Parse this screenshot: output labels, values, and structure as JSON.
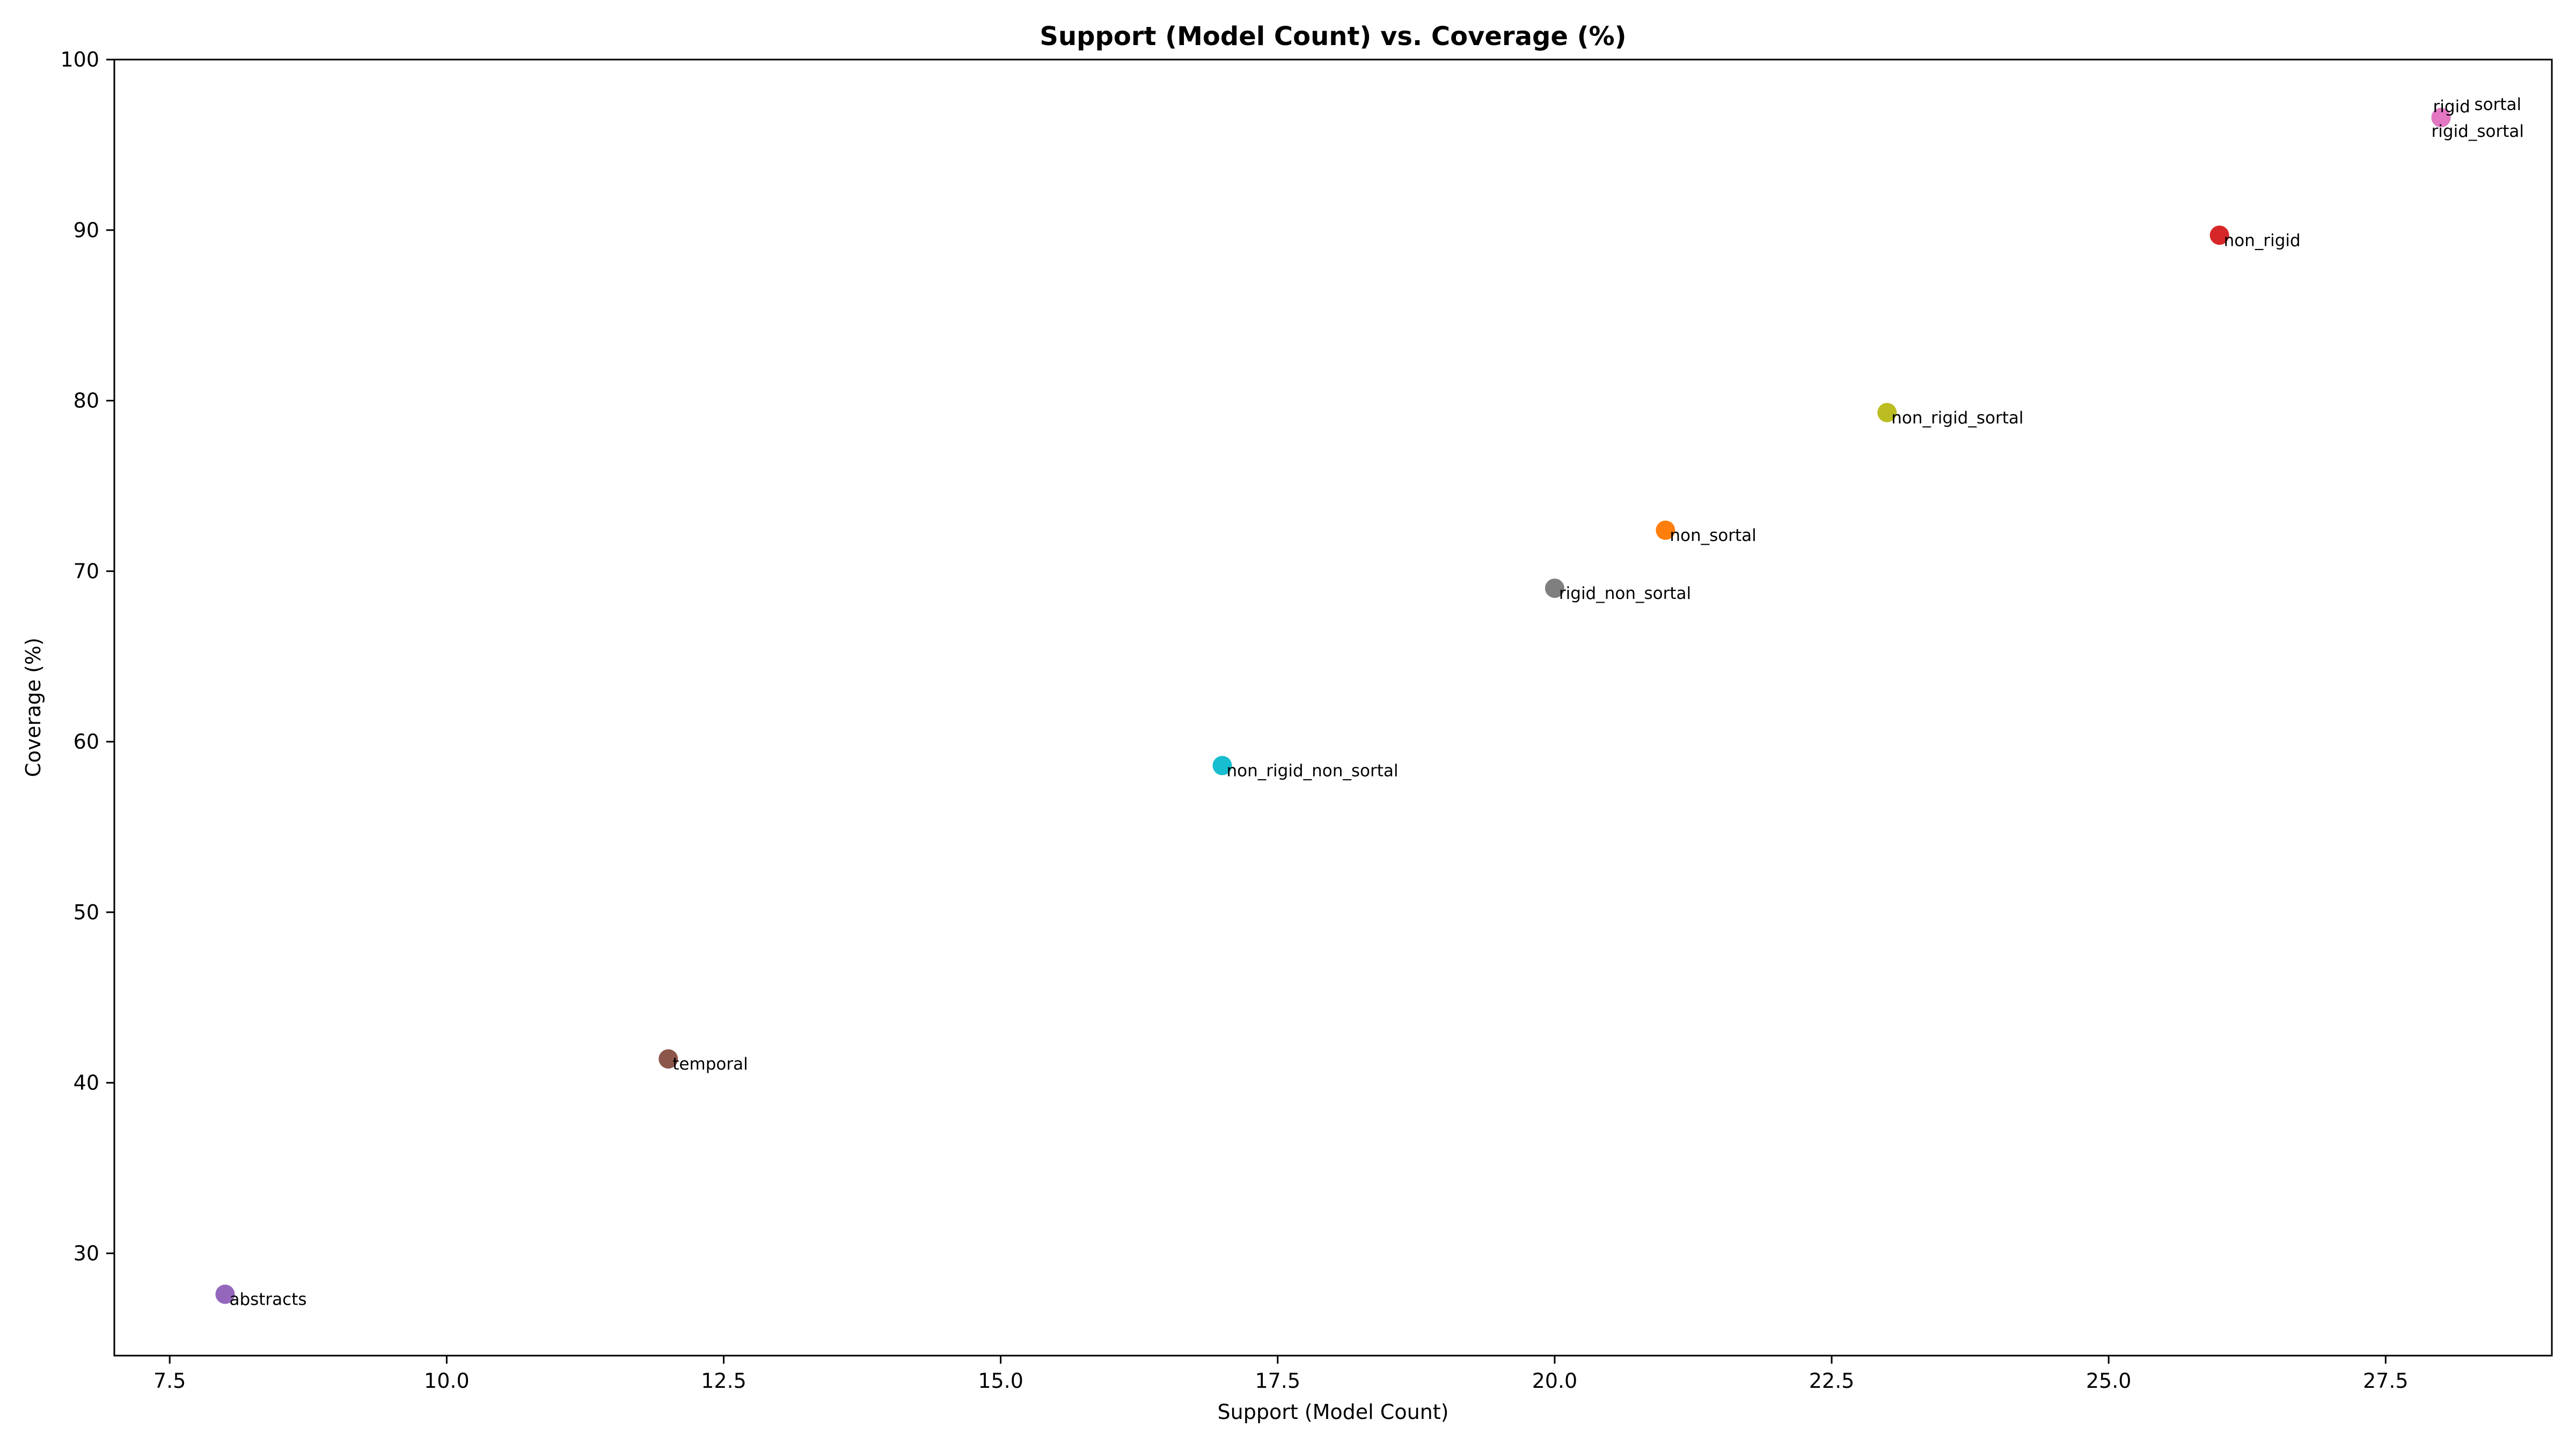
{
  "chart_data": {
    "type": "scatter",
    "title": "Support (Model Count) vs. Coverage (%)",
    "xlabel": "Support (Model Count)",
    "ylabel": "Coverage (%)",
    "xlim": [
      7.0,
      29.0
    ],
    "ylim": [
      24.0,
      100.0
    ],
    "xticks": [
      7.5,
      10.0,
      12.5,
      15.0,
      17.5,
      20.0,
      22.5,
      25.0,
      27.5
    ],
    "xtick_labels": [
      "7.5",
      "10.0",
      "12.5",
      "15.0",
      "17.5",
      "20.0",
      "22.5",
      "25.0",
      "27.5"
    ],
    "yticks": [
      30,
      40,
      50,
      60,
      70,
      80,
      90,
      100
    ],
    "ytick_labels": [
      "30",
      "40",
      "50",
      "60",
      "70",
      "80",
      "90",
      "100"
    ],
    "grid": false,
    "points": [
      {
        "label": "abstracts",
        "x": 8,
        "y": 27.6,
        "color": "#9467bd"
      },
      {
        "label": "temporal",
        "x": 12,
        "y": 41.4,
        "color": "#8c564b"
      },
      {
        "label": "non_rigid_non_sortal",
        "x": 17,
        "y": 58.6,
        "color": "#17becf"
      },
      {
        "label": "rigid_non_sortal",
        "x": 20,
        "y": 69.0,
        "color": "#7f7f7f"
      },
      {
        "label": "non_sortal",
        "x": 21,
        "y": 72.4,
        "color": "#ff7f0e"
      },
      {
        "label": "non_rigid_sortal",
        "x": 23,
        "y": 79.3,
        "color": "#bcbd22"
      },
      {
        "label": "non_rigid",
        "x": 26,
        "y": 89.7,
        "color": "#d62728"
      },
      {
        "label": "rigid",
        "x": 28,
        "y": 96.6,
        "color": "#1f77b4"
      },
      {
        "label": "sortal",
        "x": 28,
        "y": 96.6,
        "color": "#2ca02c"
      },
      {
        "label": "rigid_sortal",
        "x": 28,
        "y": 96.6,
        "color": "#e377c2"
      }
    ]
  }
}
